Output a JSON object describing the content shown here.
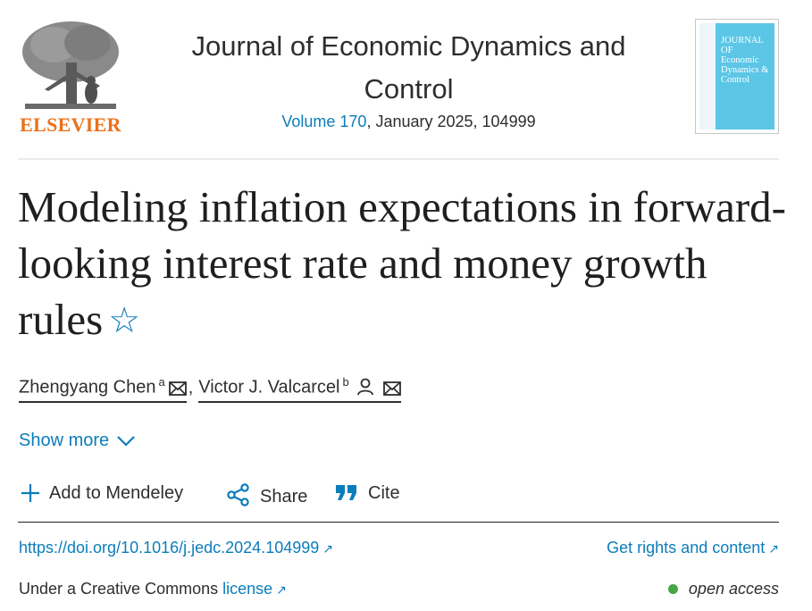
{
  "publisher": {
    "name": "ELSEVIER",
    "brand_color": "#e9711c"
  },
  "journal": {
    "title": "Journal of Economic Dynamics and Control",
    "volume_link": "Volume 170",
    "issue_rest": ", January 2025, 104999",
    "cover_title": "JOURNAL OF Economic Dynamics & Control"
  },
  "article": {
    "title": "Modeling inflation expectations in forward-looking interest rate and money growth rules",
    "star_icon": "star-icon"
  },
  "authors": [
    {
      "name": "Zhengyang Chen",
      "affil": "a"
    },
    {
      "name": "Victor J. Valcarcel",
      "affil": "b"
    }
  ],
  "author_separator": ",",
  "show_more": {
    "label": "Show more"
  },
  "actions": {
    "mendeley": "Add to Mendeley",
    "share": "Share",
    "cite": "Cite"
  },
  "links": {
    "doi": "https://doi.org/10.1016/j.jedc.2024.104999",
    "rights": "Get rights and content",
    "license_prefix": "Under a Creative Commons",
    "license_link": "license",
    "open_access": "open access",
    "arrow_glyph": "↗"
  },
  "colors": {
    "link": "#0c7dbb",
    "open_access_dot": "#47a447",
    "cover": "#5bc6e6"
  }
}
